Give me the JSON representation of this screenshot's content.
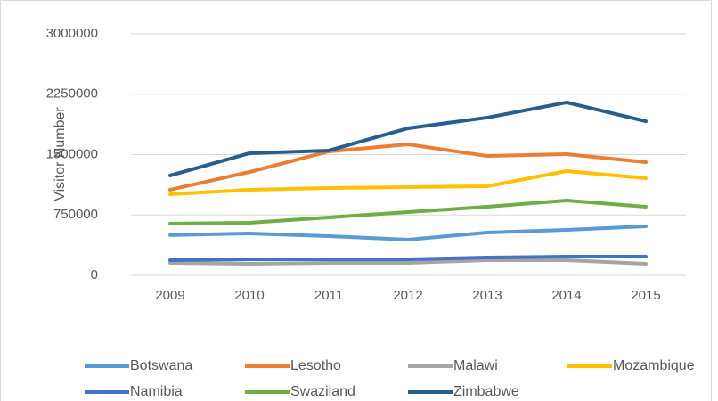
{
  "chart_data": {
    "type": "line",
    "y_label": "Visitor Number",
    "categories": [
      "2009",
      "2010",
      "2011",
      "2012",
      "2013",
      "2014",
      "2015"
    ],
    "series": [
      {
        "name": "Botswana",
        "color": "#5b9bd5",
        "values": [
          500000,
          520000,
          487000,
          443000,
          531000,
          565000,
          609000
        ]
      },
      {
        "name": "Lesotho",
        "color": "#ed7d31",
        "values": [
          1063000,
          1284000,
          1539000,
          1627000,
          1483000,
          1506000,
          1406000
        ]
      },
      {
        "name": "Malawi",
        "color": "#a5a5a5",
        "values": [
          155000,
          144000,
          155000,
          155000,
          188000,
          188000,
          144000
        ]
      },
      {
        "name": "Mozambique",
        "color": "#ffc000",
        "values": [
          1007000,
          1063000,
          1085000,
          1096000,
          1107000,
          1295000,
          1207000
        ]
      },
      {
        "name": "Namibia",
        "color": "#4472c4",
        "values": [
          188000,
          199000,
          199000,
          199000,
          221000,
          232000,
          232000
        ]
      },
      {
        "name": "Swaziland",
        "color": "#70ad47",
        "values": [
          642000,
          653000,
          720000,
          786000,
          852000,
          930000,
          852000
        ]
      },
      {
        "name": "Zimbabwe",
        "color": "#255e91",
        "values": [
          1240000,
          1517000,
          1550000,
          1827000,
          1960000,
          2148000,
          1915000
        ]
      }
    ],
    "ylim": [
      0,
      3000000
    ],
    "yticks": [
      0,
      750000,
      1500000,
      2250000,
      3000000
    ],
    "grid": true,
    "legend": "bottom"
  }
}
